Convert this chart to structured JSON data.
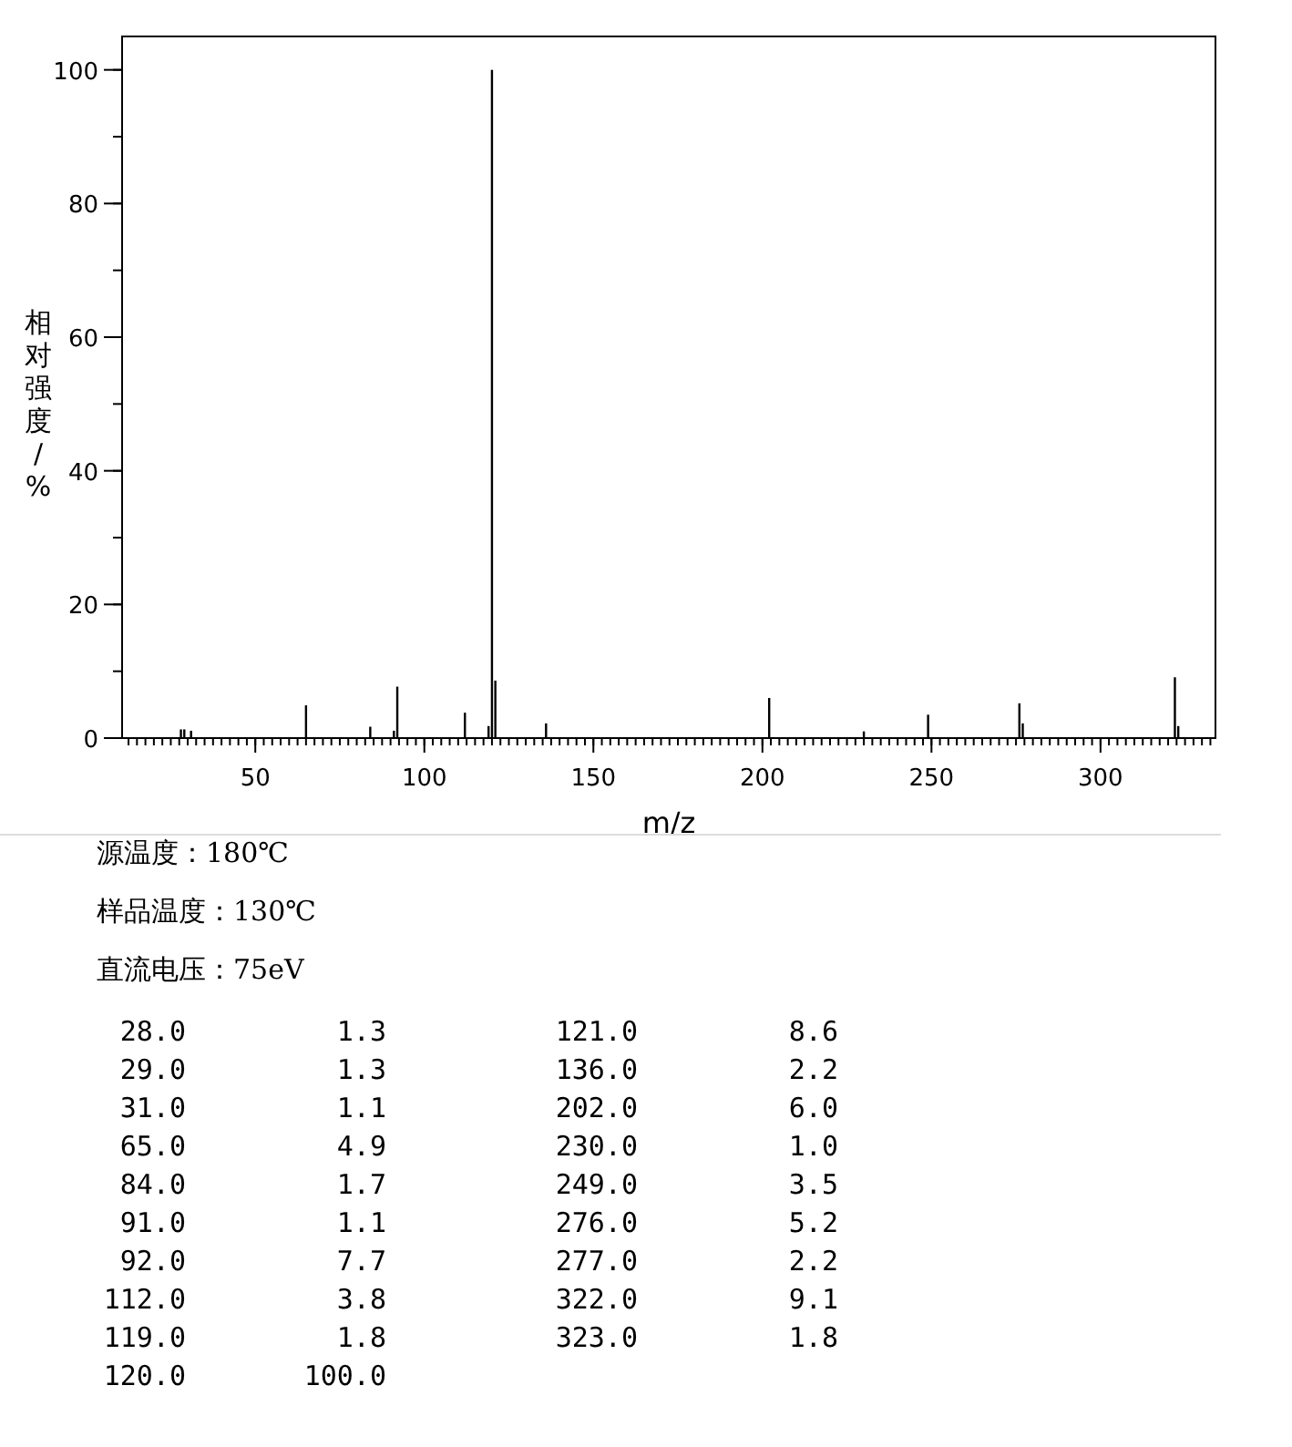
{
  "chart_data": [
    {
      "type": "bar",
      "xlabel": "m/z",
      "ylabel": "相对强度/%",
      "x": [
        28.0,
        29.0,
        31.0,
        65.0,
        84.0,
        91.0,
        92.0,
        112.0,
        119.0,
        120.0,
        121.0,
        136.0,
        202.0,
        230.0,
        249.0,
        276.0,
        277.0,
        322.0,
        323.0
      ],
      "values": [
        1.3,
        1.3,
        1.1,
        4.9,
        1.7,
        1.1,
        7.7,
        3.8,
        1.8,
        100.0,
        8.6,
        2.2,
        6.0,
        1.0,
        3.5,
        5.2,
        2.2,
        9.1,
        1.8
      ],
      "color": "#000000",
      "xlim": [
        10.6,
        334
      ],
      "xticks": [
        50,
        100,
        150,
        200,
        250,
        300
      ],
      "ylim": [
        0,
        105
      ],
      "yticks": [
        0,
        20,
        40,
        60,
        80,
        100
      ],
      "grid": false
    },
    {
      "type": "other",
      "annotations": [
        "源温度：180℃",
        "样品温度：130℃",
        "直流电压：75eV",
        "28.0",
        "1.3",
        "29.0",
        "1.3",
        "31.0",
        "1.1",
        "65.0",
        "4.9",
        "84.0",
        "1.7",
        "91.0",
        "1.1",
        "92.0",
        "7.7",
        "112.0",
        "3.8",
        "119.0",
        "1.8",
        "120.0",
        "100.0",
        "121.0",
        "8.6",
        "136.0",
        "2.2",
        "202.0",
        "6.0",
        "230.0",
        "1.0",
        "249.0",
        "3.5",
        "276.0",
        "5.2",
        "277.0",
        "2.2",
        "322.0",
        "9.1",
        "323.0",
        "1.8"
      ]
    }
  ]
}
